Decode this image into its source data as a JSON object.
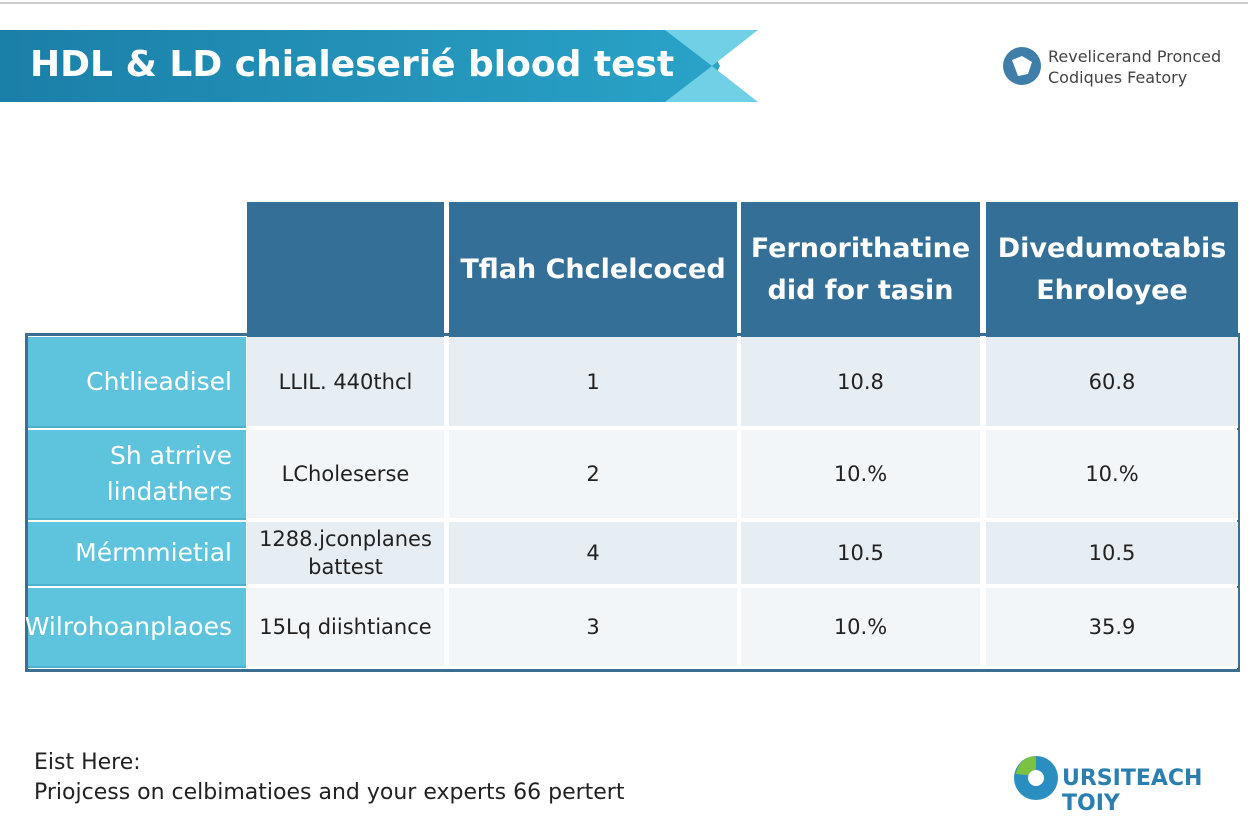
{
  "header": {
    "title": "HDL & LD chialeserié blood test",
    "brand": [
      "Revelicerand Pronced",
      "Codiques Featory"
    ]
  },
  "table": {
    "headers": [
      "Tflah Chclelcoced",
      "Fernorithatine did for tasin",
      "Divedumotabis Ehroloyee"
    ],
    "rows": [
      [
        "Chtlieadisel",
        "LLIL. 440thcl",
        "1",
        "10.8",
        "60.8"
      ],
      [
        "Sh atrrive lindathers",
        "LCholeserse",
        "2",
        "10.%",
        "10.%"
      ],
      [
        "Mérmmietial",
        "1288.jconplanes battest",
        "4",
        "10.5",
        "10.5"
      ],
      [
        "Wilrohoanplaoes",
        "15Lq diishtiance",
        "3",
        "10.%",
        "35.9"
      ]
    ]
  },
  "footer": {
    "lines": [
      "Eist Here:",
      "Priojcess on celbimatioes and your experts 66 pertert"
    ],
    "logo": "URSITEACH TOIY"
  }
}
